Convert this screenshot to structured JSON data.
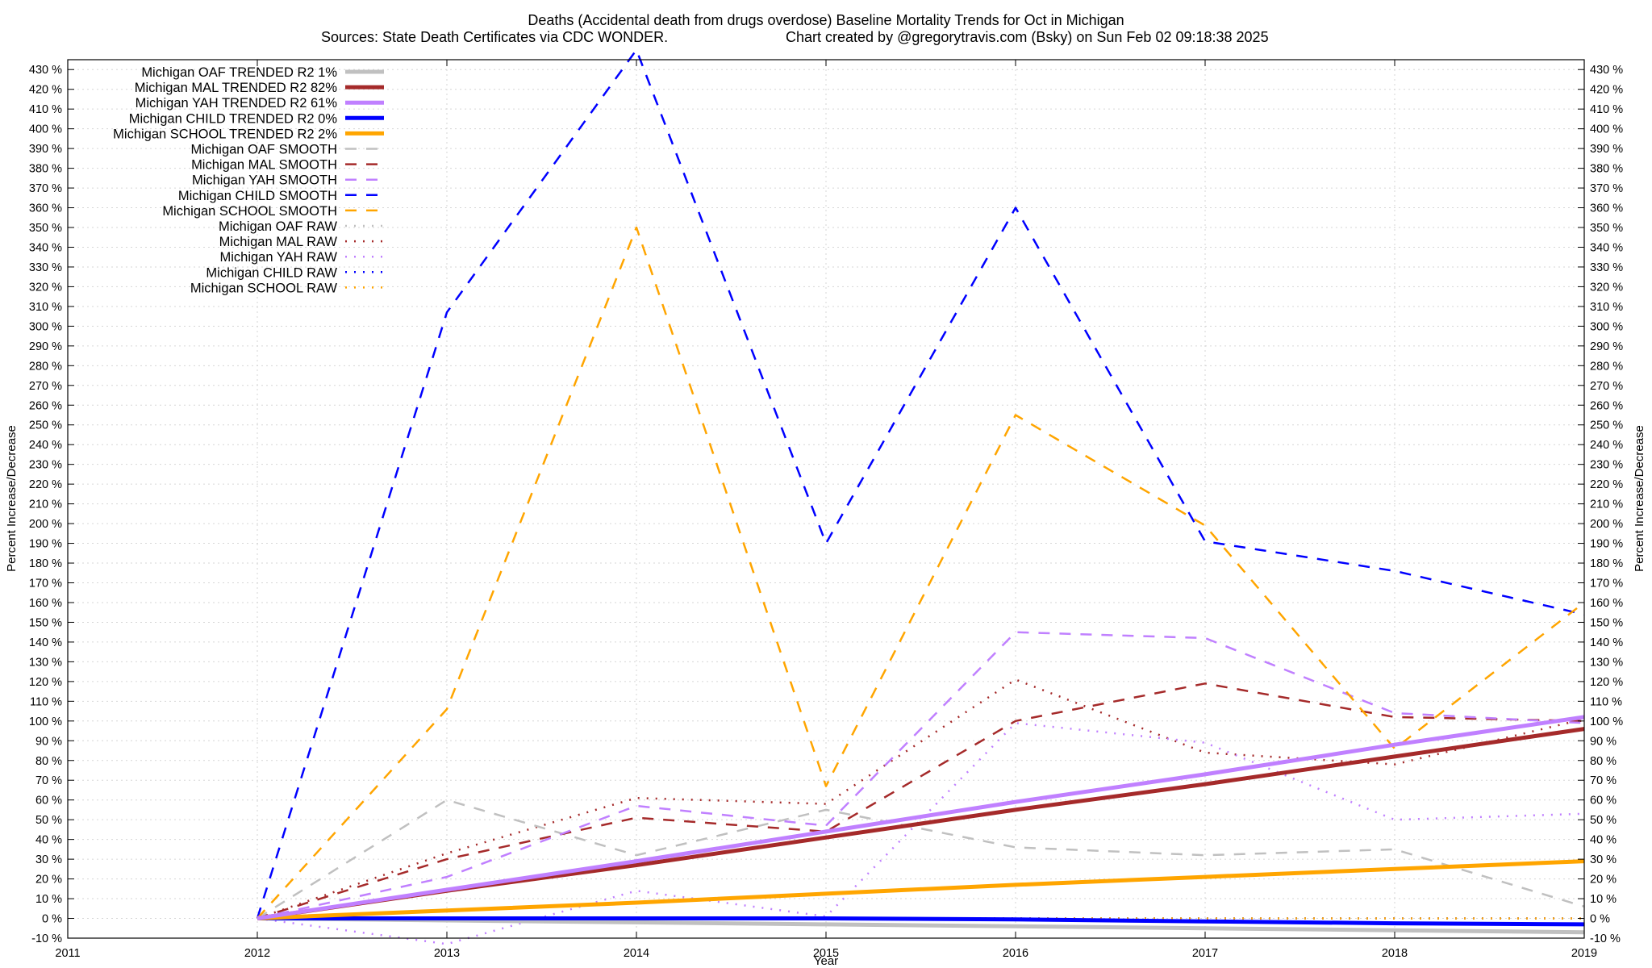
{
  "chart_data": {
    "type": "line",
    "title": "Deaths (Accidental death from drugs overdose)  Baseline Mortality Trends for Oct in Michigan",
    "subtitle_left": "Sources: State Death Certificates via CDC WONDER.",
    "subtitle_right": "Chart created by @gregorytravis.com (Bsky) on Sun Feb 02 09:18:38 2025",
    "xlabel": "Year",
    "ylabel": "Percent Increase/Decrease",
    "ylabel_right": "Percent Increase/Decrease",
    "xlim": [
      2011,
      2019
    ],
    "ylim": [
      -10,
      435
    ],
    "x_ticks": [
      2011,
      2012,
      2013,
      2014,
      2015,
      2016,
      2017,
      2018,
      2019
    ],
    "y_ticks": [
      -10,
      0,
      10,
      20,
      30,
      40,
      50,
      60,
      70,
      80,
      90,
      100,
      110,
      120,
      130,
      140,
      150,
      160,
      170,
      180,
      190,
      200,
      210,
      220,
      230,
      240,
      250,
      260,
      270,
      280,
      290,
      300,
      310,
      320,
      330,
      340,
      350,
      360,
      370,
      380,
      390,
      400,
      410,
      420,
      430
    ],
    "y_tick_suffix": " %",
    "grid": true,
    "legend_position": "top-left",
    "x": [
      2012,
      2013,
      2014,
      2015,
      2016,
      2017,
      2018,
      2019
    ],
    "series": [
      {
        "name": "Michigan OAF TRENDED R2  1%",
        "style": "solid",
        "color": "#c0c0c0",
        "width": 5,
        "values": [
          0,
          -1,
          -2,
          -3,
          -4,
          -5,
          -6,
          -7
        ]
      },
      {
        "name": "Michigan MAL TRENDED R2  82%",
        "style": "solid",
        "color": "#a52a2a",
        "width": 5,
        "values": [
          0,
          14,
          27,
          41,
          55,
          68,
          82,
          96
        ]
      },
      {
        "name": "Michigan YAH TRENDED R2  61%",
        "style": "solid",
        "color": "#c080ff",
        "width": 5,
        "values": [
          0,
          14.5,
          29,
          44,
          59,
          73,
          88,
          102
        ]
      },
      {
        "name": "Michigan CHILD TRENDED R2  0%",
        "style": "solid",
        "color": "#0000ff",
        "width": 5,
        "values": [
          0,
          0,
          0,
          0,
          -0.5,
          -1.5,
          -2.5,
          -3
        ]
      },
      {
        "name": "Michigan SCHOOL TRENDED R2  2%",
        "style": "solid",
        "color": "#ffa500",
        "width": 5,
        "values": [
          0,
          4,
          8,
          12.5,
          17,
          21,
          25,
          29
        ]
      },
      {
        "name": "Michigan OAF SMOOTH",
        "style": "dash",
        "color": "#c0c0c0",
        "width": 2.5,
        "values": [
          0,
          60,
          32,
          55,
          36,
          32,
          35,
          6
        ]
      },
      {
        "name": "Michigan MAL SMOOTH",
        "style": "dash",
        "color": "#a52a2a",
        "width": 2.5,
        "values": [
          0,
          30,
          51,
          44,
          100,
          119,
          102,
          100
        ]
      },
      {
        "name": "Michigan YAH SMOOTH",
        "style": "dash",
        "color": "#c080ff",
        "width": 2.5,
        "values": [
          0,
          21,
          57,
          47,
          145,
          142,
          104,
          99
        ]
      },
      {
        "name": "Michigan CHILD SMOOTH",
        "style": "dash",
        "color": "#0000ff",
        "width": 2.5,
        "values": [
          0,
          307,
          440,
          190,
          360,
          191,
          176,
          154
        ]
      },
      {
        "name": "Michigan SCHOOL SMOOTH",
        "style": "dash",
        "color": "#ffa500",
        "width": 2.5,
        "values": [
          0,
          106,
          350,
          67,
          255,
          199,
          86,
          160
        ]
      },
      {
        "name": "Michigan OAF RAW",
        "style": "dot",
        "color": "#c0c0c0",
        "width": 2.5,
        "values": [
          0,
          0,
          0,
          0,
          0,
          0,
          0,
          0
        ]
      },
      {
        "name": "Michigan MAL RAW",
        "style": "dot",
        "color": "#a52a2a",
        "width": 2.5,
        "values": [
          0,
          33,
          61,
          58,
          121,
          84,
          78,
          101
        ]
      },
      {
        "name": "Michigan YAH RAW",
        "style": "dot",
        "color": "#c080ff",
        "width": 2.5,
        "values": [
          0,
          -13,
          14,
          1,
          99,
          89,
          50,
          53
        ]
      },
      {
        "name": "Michigan CHILD RAW",
        "style": "dot",
        "color": "#0000ff",
        "width": 2.5,
        "values": [
          0,
          0,
          0,
          0,
          0,
          0,
          0,
          0
        ]
      },
      {
        "name": "Michigan SCHOOL RAW",
        "style": "dot",
        "color": "#ffa500",
        "width": 2.5,
        "values": [
          0,
          0,
          0,
          0,
          0,
          0,
          0,
          0
        ]
      }
    ]
  }
}
